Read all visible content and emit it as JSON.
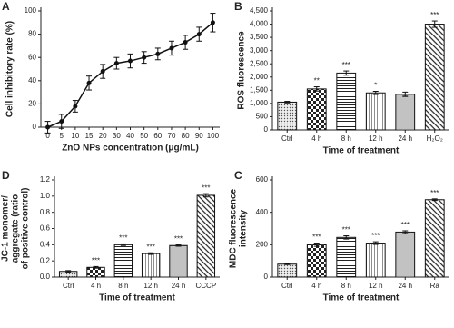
{
  "chart_data": [
    {
      "type": "line",
      "panel": "A",
      "y_label": "Cell inhibitory rate (%)",
      "x_label": "ZnO NPs concentration (μg/mL)",
      "categories": [
        "0",
        "5",
        "10",
        "15",
        "20",
        "30",
        "40",
        "50",
        "60",
        "70",
        "80",
        "90",
        "100"
      ],
      "values": [
        0,
        5,
        18,
        38,
        48,
        55,
        57,
        60,
        63,
        68,
        73,
        80,
        90
      ],
      "errors": [
        5,
        6,
        5,
        6,
        6,
        5,
        6,
        5,
        5,
        6,
        6,
        6,
        8
      ],
      "color": "#111111",
      "ylim": [
        0,
        100
      ],
      "yticks": [
        0,
        20,
        40,
        60,
        80,
        100
      ]
    },
    {
      "type": "bar",
      "panel": "B",
      "y_label": "ROS fluorescence",
      "x_label": "Time of treatment",
      "categories": [
        "Ctrl",
        "4 h",
        "8 h",
        "12 h",
        "24 h",
        "H₂O₂"
      ],
      "values": [
        1050,
        1550,
        2150,
        1400,
        1350,
        4000
      ],
      "errors": [
        30,
        80,
        80,
        60,
        80,
        120
      ],
      "annotations": [
        null,
        "**",
        "***",
        "*",
        null,
        "***"
      ],
      "patterns": [
        "dots",
        "checker",
        "hlines",
        "vlines",
        "hlines2",
        "diag"
      ],
      "ylim": [
        0,
        4500
      ],
      "yticks": [
        0,
        500,
        {
          "value": 1000,
          "label": "1,000"
        },
        {
          "value": 1500,
          "label": "1,500"
        },
        {
          "value": 2000,
          "label": "2,000"
        },
        {
          "value": 2500,
          "label": "2,500"
        },
        {
          "value": 3000,
          "label": "3,000"
        },
        {
          "value": 3500,
          "label": "3,500"
        },
        {
          "value": 4000,
          "label": "4,000"
        },
        {
          "value": 4500,
          "label": "4,500"
        }
      ]
    },
    {
      "type": "bar",
      "panel": "D",
      "y_label": [
        "JC-1 monomer/",
        "aggregate (ratio",
        "of positive control)"
      ],
      "x_label": "Time of treatment",
      "categories": [
        "Ctrl",
        "4 h",
        "8 h",
        "12 h",
        "24 h",
        "CCCP"
      ],
      "values": [
        0.07,
        0.12,
        0.4,
        0.29,
        0.39,
        1.01
      ],
      "errors": [
        0.01,
        0.01,
        0.01,
        0.01,
        0.01,
        0.02
      ],
      "annotations": [
        null,
        "***",
        "***",
        "***",
        "***",
        "***"
      ],
      "patterns": [
        "dots",
        "checker",
        "hlines",
        "vlines",
        "hlines2",
        "diag"
      ],
      "ylim": [
        0,
        1.2
      ],
      "yticks": [
        {
          "value": 0,
          "label": "0.0"
        },
        0.2,
        0.4,
        0.6,
        0.8,
        {
          "value": 1,
          "label": "1.0"
        },
        1.2
      ]
    },
    {
      "type": "bar",
      "panel": "C",
      "y_label": [
        "MDC fluorescence",
        "intensity"
      ],
      "x_label": "Time of treatment",
      "categories": [
        "Ctrl",
        "4 h",
        "8 h",
        "12 h",
        "24 h",
        "Ra"
      ],
      "values": [
        80,
        200,
        245,
        210,
        278,
        478
      ],
      "errors": [
        3,
        10,
        10,
        8,
        8,
        5
      ],
      "annotations": [
        null,
        "***",
        "***",
        "***",
        "***",
        "***"
      ],
      "patterns": [
        "dots",
        "checker",
        "hlines",
        "vlines",
        "hlines2",
        "diag"
      ],
      "ylim": [
        0,
        600
      ],
      "yticks": [
        0,
        200,
        400,
        600
      ]
    }
  ]
}
